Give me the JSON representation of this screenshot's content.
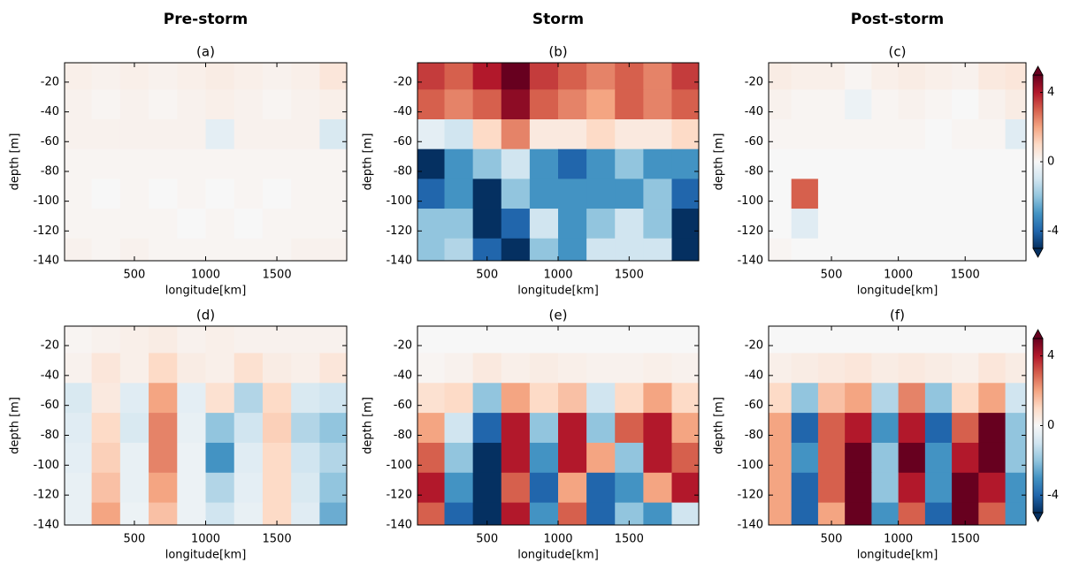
{
  "chart_data": [
    {
      "type": "heatmap",
      "column_title": "Pre-storm",
      "title": "(a)",
      "x_label": "longitude[km]",
      "y_label": "depth [m]",
      "xlim": [
        10,
        1990
      ],
      "ylim": [
        -140,
        -7
      ],
      "xticks": [
        500,
        1000,
        1500
      ],
      "yticks": [
        -20,
        -40,
        -60,
        -80,
        -100,
        -120,
        -140
      ],
      "colormap": "RdBu_r",
      "zlim": [
        -5,
        5
      ],
      "x": [
        100,
        300,
        500,
        700,
        900,
        1100,
        1300,
        1500,
        1700,
        1900
      ],
      "y": [
        -15,
        -35,
        -55,
        -75,
        -95,
        -115,
        -135
      ],
      "z": [
        [
          0.3,
          0.2,
          0.3,
          0.2,
          0.3,
          0.4,
          0.3,
          0.2,
          0.3,
          0.6
        ],
        [
          0.2,
          0.1,
          0.2,
          0.1,
          0.2,
          0.3,
          0.2,
          0.1,
          0.2,
          0.3
        ],
        [
          0.2,
          0.2,
          0.2,
          0.2,
          0.2,
          -0.5,
          0.2,
          0.2,
          0.2,
          -0.8
        ],
        [
          0.1,
          0.1,
          0.1,
          0.1,
          0.1,
          0.1,
          0.1,
          0.1,
          0.1,
          0.1
        ],
        [
          0.1,
          0,
          0.1,
          0,
          0.1,
          0,
          0.1,
          0,
          0.1,
          0.1
        ],
        [
          0.1,
          0.1,
          0.1,
          0.1,
          0,
          0.1,
          0,
          0.1,
          0.1,
          0.1
        ],
        [
          0.2,
          0.1,
          0.2,
          0.1,
          0.1,
          0.1,
          0.1,
          0.1,
          0.2,
          0.2
        ]
      ]
    },
    {
      "type": "heatmap",
      "column_title": "Storm",
      "title": "(b)",
      "x_label": "longitude[km]",
      "y_label": "depth [m]",
      "xlim": [
        10,
        1990
      ],
      "ylim": [
        -140,
        -7
      ],
      "xticks": [
        500,
        1000,
        1500
      ],
      "yticks": [
        -20,
        -40,
        -60,
        -80,
        -100,
        -120,
        -140
      ],
      "colormap": "RdBu_r",
      "zlim": [
        -5,
        5
      ],
      "x": [
        100,
        300,
        500,
        700,
        900,
        1100,
        1300,
        1500,
        1700,
        1900
      ],
      "y": [
        -15,
        -35,
        -55,
        -75,
        -95,
        -115,
        -135
      ],
      "z": [
        [
          3.5,
          3,
          4,
          5,
          3.5,
          3,
          2.5,
          3,
          2.5,
          3.5
        ],
        [
          3,
          2.5,
          3,
          4.5,
          3,
          2.5,
          2,
          3,
          2.5,
          3
        ],
        [
          -0.5,
          -1,
          1,
          2.5,
          0.5,
          0.5,
          1,
          0.5,
          0.5,
          1
        ],
        [
          -5,
          -3,
          -2,
          -1,
          -3,
          -4,
          -3,
          -2,
          -3,
          -3
        ],
        [
          -4,
          -3,
          -5,
          -2,
          -3,
          -3,
          -3,
          -3,
          -2,
          -4
        ],
        [
          -2,
          -2,
          -5,
          -4,
          -1,
          -3,
          -2,
          -1,
          -2,
          -5
        ],
        [
          -2,
          -1.5,
          -4,
          -5,
          -2,
          -3,
          -1,
          -1,
          -1,
          -5
        ]
      ]
    },
    {
      "type": "heatmap",
      "column_title": "Post-storm",
      "title": "(c)",
      "x_label": "longitude[km]",
      "y_label": "depth [m]",
      "xlim": [
        30,
        1955
      ],
      "ylim": [
        -140,
        -7
      ],
      "xticks": [
        500,
        1000,
        1500
      ],
      "yticks": [
        -20,
        -40,
        -60,
        -80,
        -100,
        -120,
        -140
      ],
      "colormap": "RdBu_r",
      "zlim": [
        -5,
        5
      ],
      "colorbar": {
        "ticks": [
          -4,
          0,
          4
        ],
        "extend": "both"
      },
      "x": [
        100,
        300,
        500,
        700,
        900,
        1100,
        1300,
        1500,
        1700,
        1900
      ],
      "y": [
        -15,
        -35,
        -55,
        -75,
        -95,
        -115,
        -135
      ],
      "z": [
        [
          0.4,
          0.3,
          0.3,
          0.1,
          0.3,
          0.4,
          0.3,
          0.2,
          0.5,
          0.6
        ],
        [
          0.2,
          0.1,
          0.1,
          -0.3,
          0.1,
          0.2,
          0.1,
          0,
          0.2,
          0.4
        ],
        [
          0.1,
          0.1,
          0.1,
          0.1,
          0.1,
          0.1,
          0,
          0.1,
          0.1,
          -0.6
        ],
        [
          0,
          0,
          0,
          0,
          0,
          0,
          0,
          0,
          0,
          0
        ],
        [
          0,
          3,
          0,
          0,
          0,
          0,
          0,
          0,
          0,
          0
        ],
        [
          0,
          -0.6,
          0,
          0,
          0,
          0,
          0,
          0,
          0,
          0
        ],
        [
          0.1,
          0,
          0,
          0,
          0,
          0,
          0,
          0,
          0,
          0
        ]
      ]
    },
    {
      "type": "heatmap",
      "title": "(d)",
      "x_label": "longitude[km]",
      "y_label": "depth [m]",
      "xlim": [
        10,
        1990
      ],
      "ylim": [
        -140,
        -7
      ],
      "xticks": [
        500,
        1000,
        1500
      ],
      "yticks": [
        -20,
        -40,
        -60,
        -80,
        -100,
        -120,
        -140
      ],
      "colormap": "RdBu_r",
      "zlim": [
        -5,
        5
      ],
      "x": [
        100,
        300,
        500,
        700,
        900,
        1100,
        1300,
        1500,
        1700,
        1900
      ],
      "y": [
        -15,
        -35,
        -55,
        -75,
        -95,
        -115,
        -135
      ],
      "z": [
        [
          0.1,
          0.2,
          0.3,
          0.4,
          0.2,
          0.3,
          0.2,
          0.2,
          0.2,
          0.2
        ],
        [
          0.2,
          0.6,
          0.3,
          1,
          0.4,
          0.3,
          0.8,
          0.4,
          0.3,
          0.6
        ],
        [
          -0.8,
          0.5,
          -0.6,
          2,
          -0.5,
          0.8,
          -1.5,
          1,
          -0.8,
          -1
        ],
        [
          -0.6,
          1,
          -0.8,
          2.5,
          -0.4,
          -2,
          -1,
          1.2,
          -1.5,
          -2
        ],
        [
          -0.5,
          1.2,
          -0.4,
          2.5,
          -0.3,
          -3,
          -0.6,
          1,
          -1,
          -1.5
        ],
        [
          -0.4,
          1.5,
          -0.4,
          2,
          -0.3,
          -1.5,
          -0.5,
          1,
          -0.8,
          -2
        ],
        [
          -0.4,
          2,
          -0.3,
          1.5,
          -0.3,
          -1,
          -0.4,
          1,
          -0.6,
          -2.5
        ]
      ]
    },
    {
      "type": "heatmap",
      "title": "(e)",
      "x_label": "longitude[km]",
      "y_label": "depth [m]",
      "xlim": [
        10,
        1990
      ],
      "ylim": [
        -140,
        -7
      ],
      "xticks": [
        500,
        1000,
        1500
      ],
      "yticks": [
        -20,
        -40,
        -60,
        -80,
        -100,
        -120,
        -140
      ],
      "colormap": "RdBu_r",
      "zlim": [
        -5,
        5
      ],
      "x": [
        100,
        300,
        500,
        700,
        900,
        1100,
        1300,
        1500,
        1700,
        1900
      ],
      "y": [
        -15,
        -35,
        -55,
        -75,
        -95,
        -115,
        -135
      ],
      "z": [
        [
          0,
          0,
          0,
          0,
          0,
          0,
          0,
          0,
          0,
          0
        ],
        [
          0.1,
          0.2,
          0.5,
          0.3,
          0.4,
          0.3,
          0.2,
          0.2,
          0.3,
          0.2
        ],
        [
          0.8,
          1,
          -2,
          2,
          1,
          1.5,
          -1,
          1,
          2,
          1
        ],
        [
          2,
          -1,
          -4,
          4,
          -2,
          4,
          -2,
          3,
          4,
          2
        ],
        [
          3,
          -2,
          -5,
          4,
          -3,
          4,
          2,
          -2,
          4,
          3
        ],
        [
          4,
          -3,
          -5,
          3,
          -4,
          2,
          -4,
          -3,
          2,
          4
        ],
        [
          3,
          -4,
          -5,
          4,
          -3,
          3,
          -4,
          -2,
          -3,
          -1
        ]
      ]
    },
    {
      "type": "heatmap",
      "title": "(f)",
      "x_label": "longitude[km]",
      "y_label": "depth [m]",
      "xlim": [
        30,
        1955
      ],
      "ylim": [
        -140,
        -7
      ],
      "xticks": [
        500,
        1000,
        1500
      ],
      "yticks": [
        -20,
        -40,
        -60,
        -80,
        -100,
        -120,
        -140
      ],
      "colormap": "RdBu_r",
      "zlim": [
        -5,
        5
      ],
      "colorbar": {
        "ticks": [
          -4,
          0,
          4
        ],
        "extend": "both"
      },
      "x": [
        100,
        300,
        500,
        700,
        900,
        1100,
        1300,
        1500,
        1700,
        1900
      ],
      "y": [
        -15,
        -35,
        -55,
        -75,
        -95,
        -115,
        -135
      ],
      "z": [
        [
          0,
          0,
          0,
          0,
          0,
          0,
          0,
          0,
          0,
          0
        ],
        [
          0.3,
          0.4,
          0.5,
          0.6,
          0.4,
          0.5,
          0.4,
          0.3,
          0.6,
          0.4
        ],
        [
          1,
          -2,
          1.5,
          2,
          -1.5,
          2.5,
          -2,
          1,
          2,
          -1
        ],
        [
          2,
          -4,
          3,
          4,
          -3,
          4,
          -4,
          3,
          5,
          -2
        ],
        [
          2,
          -3,
          3,
          5,
          -2,
          5,
          -3,
          4,
          5,
          -2
        ],
        [
          2,
          -4,
          3,
          5,
          -2,
          4,
          -3,
          5,
          4,
          -3
        ],
        [
          2,
          -4,
          2,
          5,
          -3,
          3,
          -4,
          5,
          3,
          -3
        ]
      ]
    }
  ]
}
